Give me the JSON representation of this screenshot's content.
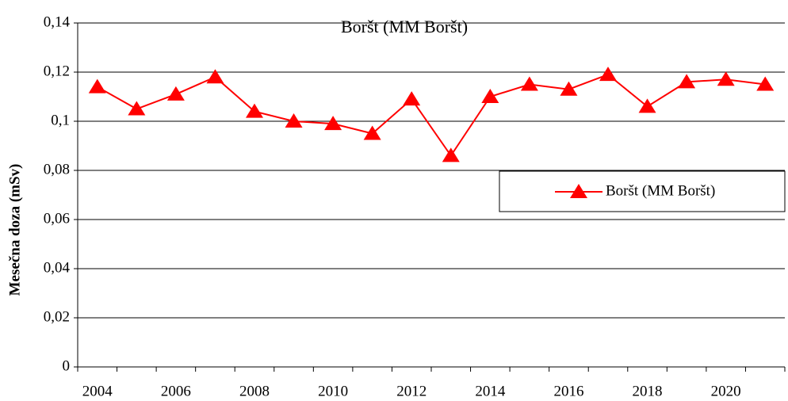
{
  "chart_data": {
    "type": "line",
    "title": "Boršt (MM Boršt)",
    "y_label": "Mesečna doza (mSv)",
    "categories": [
      "2004",
      null,
      "2006",
      null,
      "2008",
      null,
      "2010",
      null,
      "2012",
      null,
      "2014",
      null,
      "2016",
      null,
      "2018",
      null,
      "2020",
      null
    ],
    "series": [
      {
        "name": "Boršt (MM Boršt)",
        "color": "#ff0000",
        "values": [
          0.114,
          0.105,
          0.111,
          0.118,
          0.104,
          0.1,
          0.099,
          0.095,
          0.109,
          0.086,
          0.11,
          0.115,
          0.113,
          0.119,
          0.106,
          0.116,
          0.117,
          0.115
        ]
      }
    ],
    "ylim": [
      0,
      0.14
    ],
    "yticks": [
      0,
      {
        "value": 0.02,
        "label": "0,02"
      },
      {
        "value": 0.04,
        "label": "0,04"
      },
      {
        "value": 0.06,
        "label": "0,06"
      },
      {
        "value": 0.08,
        "label": "0,08"
      },
      {
        "value": 0.1,
        "label": "0,1"
      },
      {
        "value": 0.12,
        "label": "0,12"
      },
      {
        "value": 0.14,
        "label": "0,14"
      }
    ],
    "grid": true,
    "legend": "right"
  }
}
